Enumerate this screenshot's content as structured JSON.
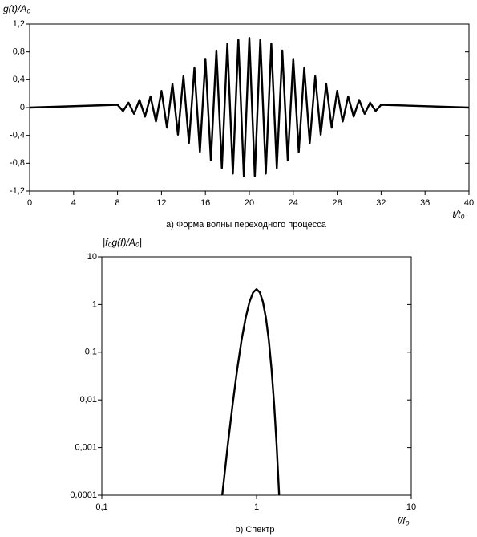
{
  "chart_data": [
    {
      "type": "line",
      "title": "а) Форма волны переходного процесса",
      "xlabel": "t/t₀",
      "ylabel": "g(t)/A₀",
      "x": [
        0,
        8,
        8.5,
        9,
        9.5,
        10,
        10.5,
        11,
        11.5,
        12,
        12.5,
        13,
        13.5,
        14,
        14.5,
        15,
        15.5,
        16,
        16.5,
        17,
        17.5,
        18,
        18.5,
        19,
        19.5,
        20,
        20.5,
        21,
        21.5,
        22,
        22.5,
        23,
        23.5,
        24,
        24.5,
        25,
        25.5,
        26,
        26.5,
        27,
        27.5,
        28,
        28.5,
        29,
        29.5,
        30,
        30.5,
        31,
        31.5,
        32,
        40
      ],
      "values": [
        0,
        0.04,
        -0.05,
        0.07,
        -0.09,
        0.11,
        -0.13,
        0.16,
        -0.2,
        0.24,
        -0.29,
        0.34,
        -0.39,
        0.45,
        -0.51,
        0.57,
        -0.64,
        0.7,
        -0.76,
        0.82,
        -0.87,
        0.92,
        -0.95,
        0.98,
        -0.99,
        1,
        -0.99,
        0.98,
        -0.95,
        0.92,
        -0.87,
        0.82,
        -0.76,
        0.7,
        -0.64,
        0.57,
        -0.51,
        0.45,
        -0.39,
        0.34,
        -0.29,
        0.24,
        -0.2,
        0.16,
        -0.13,
        0.11,
        -0.09,
        0.07,
        -0.05,
        0.04,
        0
      ],
      "color": "#000000",
      "xlim": [
        0,
        40
      ],
      "xticks": [
        0,
        4,
        8,
        12,
        16,
        20,
        24,
        28,
        32,
        36,
        40
      ],
      "ylim": [
        -1.2,
        1.2
      ],
      "yticks": [
        {
          "value": -1.2,
          "label": "-1,2"
        },
        {
          "value": -0.8,
          "label": "-0,8"
        },
        {
          "value": -0.4,
          "label": "-0,4"
        },
        0,
        {
          "value": 0.4,
          "label": "0,4"
        },
        {
          "value": 0.8,
          "label": "0,8"
        },
        {
          "value": 1.2,
          "label": "1,2"
        }
      ],
      "xscale": "linear",
      "yscale": "linear",
      "grid": false
    },
    {
      "type": "line",
      "title": "b) Спектр",
      "xlabel": "f/f₀",
      "ylabel": "|f₀g(f)/A₀|",
      "x": [
        0.6,
        0.65,
        0.7,
        0.75,
        0.8,
        0.85,
        0.9,
        0.95,
        1,
        1.05,
        1.1,
        1.15,
        1.2,
        1.25,
        1.3,
        1.35,
        1.4
      ],
      "values": [
        0.0001,
        0.00105,
        0.0079,
        0.044,
        0.18,
        0.52,
        1.13,
        1.8,
        2.1,
        1.8,
        1.13,
        0.52,
        0.18,
        0.044,
        0.0079,
        0.00105,
        0.0001
      ],
      "color": "#000000",
      "xlim": [
        0.1,
        10
      ],
      "xticks": [
        {
          "value": 0.1,
          "label": "0,1"
        },
        1,
        10
      ],
      "ylim": [
        0.0001,
        10
      ],
      "yticks": [
        {
          "value": 0.0001,
          "label": "0,0001"
        },
        {
          "value": 0.001,
          "label": "0,001"
        },
        {
          "value": 0.01,
          "label": "0,01"
        },
        {
          "value": 0.1,
          "label": "0,1"
        },
        1,
        10
      ],
      "xscale": "log",
      "yscale": "log",
      "grid": false
    }
  ]
}
